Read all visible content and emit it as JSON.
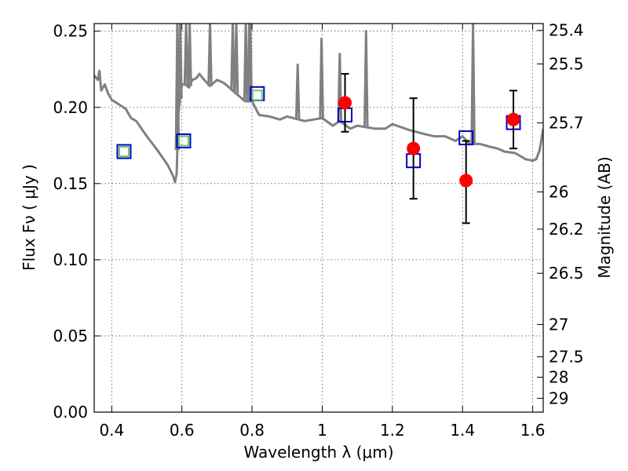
{
  "chart_data": {
    "type": "scatter",
    "xlabel": "Wavelength  λ (μm)",
    "ylabel_left": "Flux  Fν  ( μJy )",
    "ylabel_right": "Magnitude (AB)",
    "xlim": [
      0.35,
      1.63
    ],
    "ylim": [
      0.0,
      0.255
    ],
    "grid": true,
    "x_ticks": [
      0.4,
      0.6,
      0.8,
      1.0,
      1.2,
      1.4,
      1.6
    ],
    "x_tick_labels": [
      "0.4",
      "0.6",
      "0.8",
      "1",
      "1.2",
      "1.4",
      "1.6"
    ],
    "y_ticks": [
      0.0,
      0.05,
      0.1,
      0.15,
      0.2,
      0.25
    ],
    "y_tick_labels": [
      "0.00",
      "0.05",
      "0.10",
      "0.15",
      "0.20",
      "0.25"
    ],
    "right_ticks": [
      {
        "label": "25.4",
        "flux": 0.2505
      },
      {
        "label": "25.5",
        "flux": 0.2285
      },
      {
        "label": "25.7",
        "flux": 0.1898
      },
      {
        "label": "26",
        "flux": 0.1445
      },
      {
        "label": "26.2",
        "flux": 0.1201
      },
      {
        "label": "26.5",
        "flux": 0.0911
      },
      {
        "label": "27",
        "flux": 0.0575
      },
      {
        "label": "27.5",
        "flux": 0.0363
      },
      {
        "label": "28",
        "flux": 0.0229
      },
      {
        "label": "29",
        "flux": 0.0091
      }
    ],
    "series": [
      {
        "type": "line",
        "color": "#808080",
        "x": [
          0.35,
          0.36,
          0.365,
          0.37,
          0.38,
          0.39,
          0.4,
          0.42,
          0.44,
          0.455,
          0.47,
          0.5,
          0.53,
          0.56,
          0.575,
          0.58,
          0.585,
          0.59,
          0.595,
          0.6,
          0.61,
          0.62,
          0.63,
          0.64,
          0.65,
          0.66,
          0.68,
          0.7,
          0.72,
          0.74,
          0.76,
          0.78,
          0.79,
          0.8,
          0.82,
          0.85,
          0.88,
          0.9,
          0.95,
          1.0,
          1.03,
          1.05,
          1.08,
          1.1,
          1.15,
          1.18,
          1.2,
          1.25,
          1.3,
          1.32,
          1.35,
          1.38,
          1.4,
          1.42,
          1.45,
          1.48,
          1.5,
          1.52,
          1.55,
          1.58,
          1.6,
          1.61,
          1.62,
          1.63
        ],
        "y": [
          0.221,
          0.218,
          0.224,
          0.211,
          0.215,
          0.209,
          0.205,
          0.202,
          0.199,
          0.193,
          0.191,
          0.181,
          0.172,
          0.162,
          0.155,
          0.151,
          0.156,
          0.196,
          0.206,
          0.215,
          0.215,
          0.213,
          0.218,
          0.219,
          0.222,
          0.219,
          0.214,
          0.218,
          0.216,
          0.212,
          0.208,
          0.204,
          0.204,
          0.204,
          0.195,
          0.194,
          0.192,
          0.194,
          0.191,
          0.193,
          0.188,
          0.191,
          0.186,
          0.188,
          0.186,
          0.186,
          0.189,
          0.185,
          0.182,
          0.181,
          0.181,
          0.178,
          0.181,
          0.176,
          0.176,
          0.174,
          0.173,
          0.171,
          0.17,
          0.166,
          0.165,
          0.166,
          0.172,
          0.186
        ]
      },
      {
        "type": "line_spikes",
        "color": "#808080",
        "x": [
          0.587,
          0.595,
          0.612,
          0.622,
          0.68,
          0.745,
          0.755,
          0.782,
          0.792,
          0.795,
          0.93,
          0.998,
          1.05,
          1.125,
          1.43
        ],
        "y": [
          0.255,
          0.255,
          0.255,
          0.255,
          0.255,
          0.255,
          0.255,
          0.255,
          0.255,
          0.255,
          0.228,
          0.245,
          0.235,
          0.25,
          0.255
        ]
      },
      {
        "type": "scatter",
        "marker": "square",
        "color": "#0000cc",
        "x": [
          0.435,
          0.605,
          0.815,
          1.065,
          1.26,
          1.41,
          1.545
        ],
        "y": [
          0.171,
          0.178,
          0.209,
          0.195,
          0.165,
          0.18,
          0.19
        ]
      },
      {
        "type": "scatter",
        "marker": "square-small",
        "color": "#66cc66",
        "x": [
          0.435,
          0.605,
          0.815
        ],
        "y": [
          0.171,
          0.178,
          0.208
        ]
      },
      {
        "type": "scatter",
        "marker": "circle",
        "color": "#ff0000",
        "x": [
          1.065,
          1.26,
          1.41,
          1.545
        ],
        "y": [
          0.203,
          0.173,
          0.152,
          0.192
        ],
        "yerr_low": [
          0.184,
          0.14,
          0.124,
          0.173
        ],
        "yerr_high": [
          0.222,
          0.206,
          0.178,
          0.211
        ]
      }
    ]
  }
}
